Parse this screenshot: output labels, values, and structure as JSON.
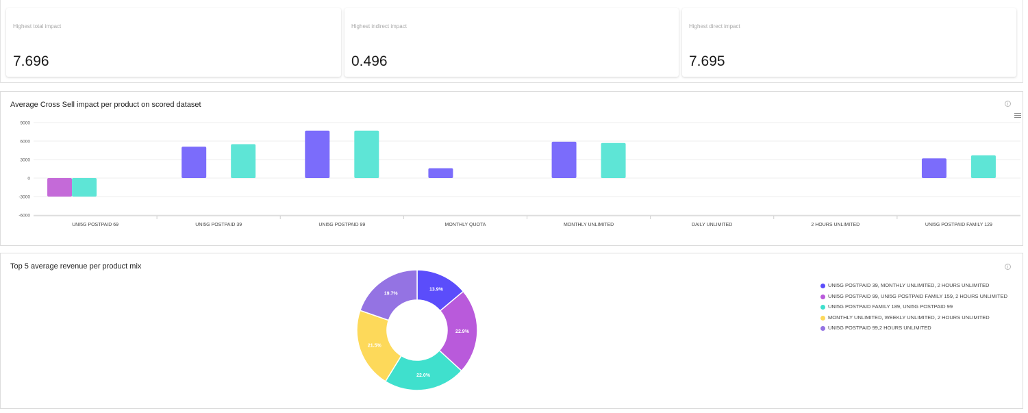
{
  "kpis": [
    {
      "label": "Highest total impact",
      "value": "7.696"
    },
    {
      "label": "Highest indirect impact",
      "value": "0.496"
    },
    {
      "label": "Highest direct impact",
      "value": "7.695"
    }
  ],
  "bar_panel": {
    "title": "Average Cross Sell impact per product on scored dataset"
  },
  "pie_panel": {
    "title": "Top 5 average revenue per product mix"
  },
  "colors": {
    "series_a": "#7b6cfb",
    "series_b": "#5ee5d6",
    "negative": "#c46ad8"
  },
  "chart_data": [
    {
      "type": "bar",
      "title": "Average Cross Sell impact per product on scored dataset",
      "categories": [
        "UNI5G POSTPAID 69",
        "UNI5G POSTPAID 39",
        "UNI5G POSTPAID 99",
        "MONTHLY QUOTA",
        "MONTHLY UNLIMITED",
        "DAILY UNLIMITED",
        "2 HOURS UNLIMITED",
        "UNI5G POSTPAID FAMILY 129"
      ],
      "series": [
        {
          "values": [
            -3000,
            5100,
            7700,
            1600,
            5900,
            0,
            0,
            3200
          ],
          "color": "#7b6cfb"
        },
        {
          "values": [
            -3000,
            5500,
            7700,
            0,
            5700,
            0,
            0,
            3700
          ],
          "color": "#5ee5d6"
        }
      ],
      "ylim": [
        -6000,
        9000
      ],
      "yticks": [
        "9000",
        "6000",
        "3000",
        "0",
        "-3000",
        "-6000"
      ],
      "ytick_values": [
        9000,
        6000,
        3000,
        0,
        -3000,
        -6000
      ],
      "grid": true
    },
    {
      "type": "pie",
      "title": "Top 5 average revenue per product mix",
      "labels": [
        "UNI5G POSTPAID 39, MONTHLY UNLIMITED, 2 HOURS UNLIMITED",
        "UNI5G POSTPAID 99, UNI5G POSTPAID FAMILY 159, 2 HOURS UNLIMITED",
        "UNI5G POSTPAID FAMILY 189, UNI5G POSTPAID 99",
        "MONTHLY UNLIMITED, WEEKLY UNLIMITED, 2 HOURS UNLIMITED",
        "UNI5G POSTPAID 99,2 HOURS UNLIMITED"
      ],
      "values": [
        13.9,
        22.9,
        22.0,
        21.5,
        19.7
      ],
      "value_labels": [
        "13.9%",
        "22.9%",
        "22.0%",
        "21.5%",
        "19.7%"
      ],
      "colors": [
        "#5b4dfb",
        "#b95adb",
        "#3fe0cd",
        "#fdd95a",
        "#9473e3"
      ],
      "legend": "right"
    }
  ]
}
